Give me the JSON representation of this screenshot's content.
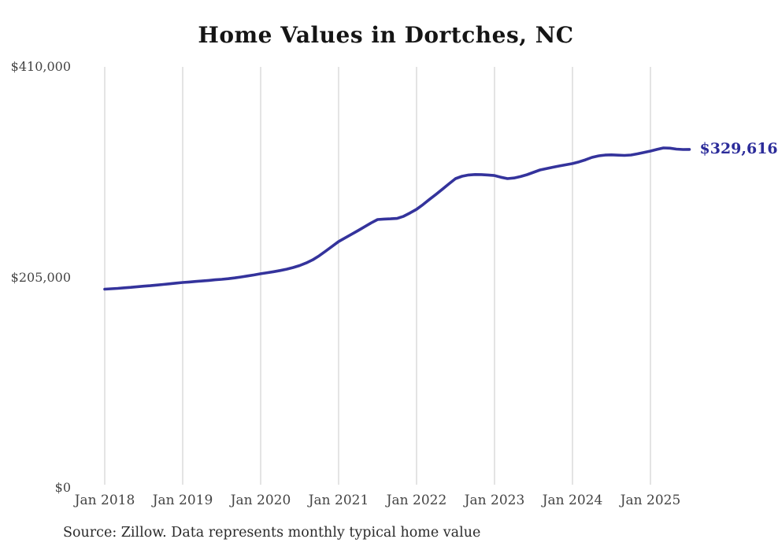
{
  "title": "Home Values in Dortches, NC",
  "source_note": "Source: Zillow. Data represents monthly typical home value",
  "end_label": "$329,616",
  "colors": {
    "line": "#34339c",
    "end_label_text": "#2c2c9a",
    "grid": "#c9c9c9",
    "axis_text": "#444444",
    "title_text": "#151515",
    "source_text": "#2b2b2b",
    "background": "#ffffff"
  },
  "chart_data": {
    "type": "line",
    "title": "Home Values in Dortches, NC",
    "series_name": "Monthly typical home value",
    "xlabel": "",
    "ylabel": "",
    "ylim": [
      0,
      410000
    ],
    "grid": "vertical-only",
    "legend": "none",
    "last_value": 329616,
    "last_value_label": "$329,616",
    "yticks": [
      {
        "value": 0,
        "label": "$0"
      },
      {
        "value": 205000,
        "label": "$205,000"
      },
      {
        "value": 410000,
        "label": "$410,000"
      }
    ],
    "xticks": [
      {
        "month_index": 0,
        "label": "Jan 2018"
      },
      {
        "month_index": 12,
        "label": "Jan 2019"
      },
      {
        "month_index": 24,
        "label": "Jan 2020"
      },
      {
        "month_index": 36,
        "label": "Jan 2021"
      },
      {
        "month_index": 48,
        "label": "Jan 2022"
      },
      {
        "month_index": 60,
        "label": "Jan 2023"
      },
      {
        "month_index": 72,
        "label": "Jan 2024"
      },
      {
        "month_index": 84,
        "label": "Jan 2025"
      }
    ],
    "x": [
      "Jan 2018",
      "Feb 2018",
      "Mar 2018",
      "Apr 2018",
      "May 2018",
      "Jun 2018",
      "Jul 2018",
      "Aug 2018",
      "Sep 2018",
      "Oct 2018",
      "Nov 2018",
      "Dec 2018",
      "Jan 2019",
      "Feb 2019",
      "Mar 2019",
      "Apr 2019",
      "May 2019",
      "Jun 2019",
      "Jul 2019",
      "Aug 2019",
      "Sep 2019",
      "Oct 2019",
      "Nov 2019",
      "Dec 2019",
      "Jan 2020",
      "Feb 2020",
      "Mar 2020",
      "Apr 2020",
      "May 2020",
      "Jun 2020",
      "Jul 2020",
      "Aug 2020",
      "Sep 2020",
      "Oct 2020",
      "Nov 2020",
      "Dec 2020",
      "Jan 2021",
      "Feb 2021",
      "Mar 2021",
      "Apr 2021",
      "May 2021",
      "Jun 2021",
      "Jul 2021",
      "Aug 2021",
      "Sep 2021",
      "Oct 2021",
      "Nov 2021",
      "Dec 2021",
      "Jan 2022",
      "Feb 2022",
      "Mar 2022",
      "Apr 2022",
      "May 2022",
      "Jun 2022",
      "Jul 2022",
      "Aug 2022",
      "Sep 2022",
      "Oct 2022",
      "Nov 2022",
      "Dec 2022",
      "Jan 2023",
      "Feb 2023",
      "Mar 2023",
      "Apr 2023",
      "May 2023",
      "Jun 2023",
      "Jul 2023",
      "Aug 2023",
      "Sep 2023",
      "Oct 2023",
      "Nov 2023",
      "Dec 2023",
      "Jan 2024",
      "Feb 2024",
      "Mar 2024",
      "Apr 2024",
      "May 2024",
      "Jun 2024",
      "Jul 2024",
      "Aug 2024",
      "Sep 2024",
      "Oct 2024",
      "Nov 2024",
      "Dec 2024",
      "Jan 2025",
      "Feb 2025",
      "Mar 2025",
      "Apr 2025",
      "May 2025",
      "Jun 2025",
      "Jul 2025"
    ],
    "values": [
      193500,
      193900,
      194300,
      194800,
      195300,
      195900,
      196400,
      196900,
      197500,
      198100,
      198700,
      199400,
      200000,
      200500,
      201000,
      201500,
      202000,
      202600,
      203100,
      203700,
      204500,
      205400,
      206400,
      207400,
      208500,
      209500,
      210500,
      211700,
      213000,
      214600,
      216500,
      219000,
      222000,
      226000,
      230500,
      235200,
      239900,
      243500,
      247000,
      250600,
      254300,
      258000,
      261300,
      261800,
      262000,
      262400,
      264500,
      267800,
      271300,
      276000,
      281000,
      285900,
      291000,
      296200,
      301200,
      303500,
      304700,
      305200,
      305100,
      304700,
      304200,
      302500,
      301200,
      301800,
      303200,
      305000,
      307300,
      309600,
      311000,
      312300,
      313500,
      314700,
      315800,
      317500,
      319500,
      321900,
      323300,
      324100,
      324300,
      324000,
      323800,
      324200,
      325300,
      326700,
      328000,
      329600,
      331100,
      330800,
      329900,
      329500,
      329616
    ]
  }
}
